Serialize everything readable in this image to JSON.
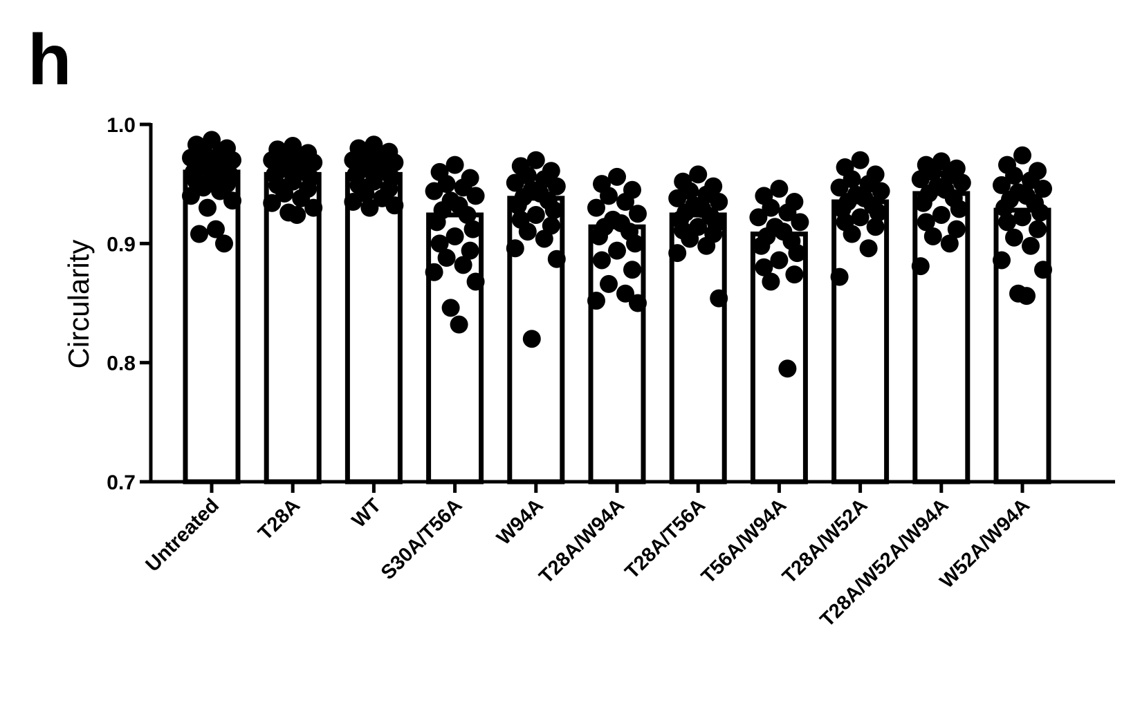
{
  "panel_label": "h",
  "chart_data": {
    "type": "bar",
    "title": "",
    "xlabel": "",
    "ylabel": "Circularity",
    "ylim": [
      0.7,
      1.0
    ],
    "yticks": [
      "0.7",
      "0.8",
      "0.9",
      "1.0"
    ],
    "grid": false,
    "legend": "none",
    "categories": [
      "Untreated",
      "T28A",
      "WT",
      "S30A/T56A",
      "W94A",
      "T28A/W94A",
      "T28A/T56A",
      "T56A/W94A",
      "T28A/W52A",
      "T28A/W52A/W94A",
      "W52A/W94A"
    ],
    "values": [
      0.96,
      0.958,
      0.958,
      0.924,
      0.938,
      0.914,
      0.924,
      0.908,
      0.935,
      0.942,
      0.928
    ],
    "points": [
      [
        0.987,
        0.983,
        0.98,
        0.978,
        0.975,
        0.972,
        0.97,
        0.968,
        0.966,
        0.964,
        0.962,
        0.96,
        0.958,
        0.955,
        0.952,
        0.95,
        0.947,
        0.944,
        0.94,
        0.936,
        0.93,
        0.912,
        0.908,
        0.9
      ],
      [
        0.982,
        0.979,
        0.976,
        0.974,
        0.972,
        0.97,
        0.968,
        0.966,
        0.964,
        0.962,
        0.96,
        0.958,
        0.955,
        0.952,
        0.949,
        0.946,
        0.942,
        0.938,
        0.934,
        0.93,
        0.926,
        0.924
      ],
      [
        0.983,
        0.98,
        0.977,
        0.975,
        0.972,
        0.97,
        0.968,
        0.966,
        0.964,
        0.962,
        0.96,
        0.958,
        0.955,
        0.952,
        0.949,
        0.946,
        0.942,
        0.938,
        0.935,
        0.932,
        0.93
      ],
      [
        0.966,
        0.96,
        0.955,
        0.95,
        0.947,
        0.944,
        0.94,
        0.936,
        0.932,
        0.928,
        0.924,
        0.918,
        0.912,
        0.906,
        0.9,
        0.894,
        0.888,
        0.882,
        0.876,
        0.868,
        0.846,
        0.832
      ],
      [
        0.97,
        0.965,
        0.961,
        0.957,
        0.954,
        0.951,
        0.948,
        0.945,
        0.942,
        0.939,
        0.936,
        0.932,
        0.928,
        0.924,
        0.92,
        0.915,
        0.91,
        0.904,
        0.896,
        0.887,
        0.82
      ],
      [
        0.956,
        0.95,
        0.945,
        0.94,
        0.935,
        0.93,
        0.925,
        0.92,
        0.917,
        0.914,
        0.91,
        0.906,
        0.9,
        0.894,
        0.886,
        0.878,
        0.866,
        0.858,
        0.852,
        0.85
      ],
      [
        0.958,
        0.952,
        0.948,
        0.944,
        0.941,
        0.938,
        0.935,
        0.932,
        0.929,
        0.926,
        0.923,
        0.92,
        0.917,
        0.914,
        0.911,
        0.908,
        0.904,
        0.898,
        0.892,
        0.854
      ],
      [
        0.946,
        0.94,
        0.935,
        0.93,
        0.926,
        0.922,
        0.918,
        0.914,
        0.91,
        0.906,
        0.902,
        0.898,
        0.892,
        0.886,
        0.88,
        0.874,
        0.868,
        0.795
      ],
      [
        0.97,
        0.964,
        0.958,
        0.954,
        0.95,
        0.947,
        0.944,
        0.941,
        0.938,
        0.935,
        0.932,
        0.929,
        0.926,
        0.922,
        0.918,
        0.914,
        0.908,
        0.896,
        0.872
      ],
      [
        0.969,
        0.966,
        0.963,
        0.96,
        0.957,
        0.954,
        0.951,
        0.948,
        0.945,
        0.942,
        0.938,
        0.934,
        0.929,
        0.924,
        0.918,
        0.912,
        0.906,
        0.9,
        0.881
      ],
      [
        0.974,
        0.966,
        0.961,
        0.957,
        0.953,
        0.949,
        0.946,
        0.943,
        0.94,
        0.937,
        0.934,
        0.93,
        0.926,
        0.922,
        0.918,
        0.912,
        0.905,
        0.898,
        0.886,
        0.878,
        0.858,
        0.856
      ]
    ]
  }
}
